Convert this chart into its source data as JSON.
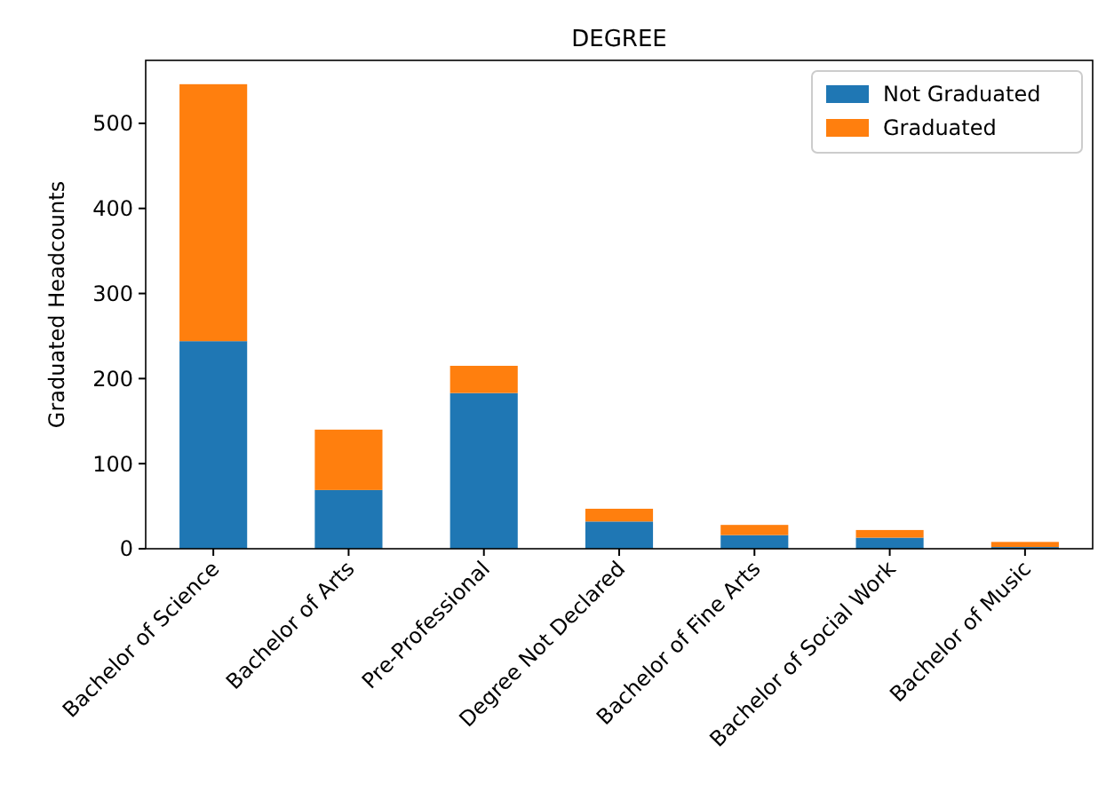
{
  "chart_data": {
    "type": "bar",
    "title": "DEGREE",
    "ylabel": "Graduated Headcounts",
    "stacked": true,
    "categories": [
      "Bachelor of Science",
      "Bachelor of Arts",
      "Pre-Professional",
      "Degree Not Declared",
      "Bachelor of Fine Arts",
      "Bachelor of Social Work",
      "Bachelor of Music"
    ],
    "series": [
      {
        "name": "Not Graduated",
        "color": "#1f77b4",
        "values": [
          244,
          69,
          183,
          32,
          16,
          13,
          2
        ]
      },
      {
        "name": "Graduated",
        "color": "#ff7f0e",
        "values": [
          302,
          71,
          32,
          15,
          12,
          9,
          6
        ]
      }
    ],
    "ylim": [
      0,
      574
    ],
    "yticks": [
      0,
      100,
      200,
      300,
      400,
      500
    ],
    "legend": "top right"
  }
}
